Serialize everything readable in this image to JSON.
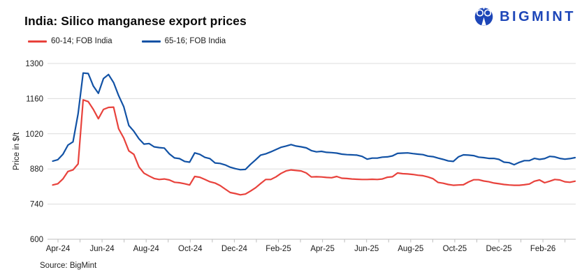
{
  "header": {
    "title": "India: Silico manganese export prices"
  },
  "logo": {
    "text": "BIGMINT",
    "color": "#1d46b8",
    "icon": "bigmint-people-icon"
  },
  "legend": {
    "items": [
      {
        "label": "60-14; FOB India",
        "color": "#e8423c"
      },
      {
        "label": "65-16; FOB India",
        "color": "#1252a5"
      }
    ]
  },
  "source": {
    "text": "Source: BigMint"
  },
  "chart_data": {
    "type": "line",
    "title": "India: Silico manganese export prices",
    "xlabel": "",
    "ylabel": "Price in $/t",
    "ylim": [
      600,
      1300
    ],
    "yticks": [
      600,
      740,
      880,
      1020,
      1160,
      1300
    ],
    "grid": "horizontal",
    "legend_position": "top-left",
    "x_range": [
      "late Mar-24",
      "mid Mar-26"
    ],
    "x_tick_months": 24,
    "xticklabels": [
      "Apr-24",
      "Jun-24",
      "Aug-24",
      "Oct-24",
      "Dec-24",
      "Feb-25",
      "Apr-25",
      "Jun-25",
      "Aug-25",
      "Oct-25",
      "Dec-25",
      "Feb-26"
    ],
    "x_resolution": "weekly",
    "series": [
      {
        "name": "60-14; FOB India",
        "color": "#e8423c",
        "values": [
          816,
          821,
          840,
          870,
          876,
          900,
          1155,
          1148,
          1117,
          1080,
          1117,
          1125,
          1126,
          1040,
          1003,
          952,
          938,
          888,
          863,
          852,
          842,
          838,
          840,
          836,
          827,
          825,
          821,
          816,
          850,
          847,
          838,
          829,
          824,
          814,
          800,
          786,
          782,
          777,
          780,
          792,
          805,
          822,
          838,
          838,
          848,
          862,
          872,
          876,
          874,
          872,
          864,
          848,
          849,
          848,
          846,
          845,
          850,
          843,
          842,
          840,
          839,
          838,
          838,
          839,
          838,
          840,
          847,
          849,
          864,
          861,
          860,
          858,
          855,
          853,
          848,
          841,
          826,
          823,
          818,
          815,
          816,
          817,
          828,
          837,
          837,
          832,
          829,
          824,
          821,
          818,
          816,
          815,
          815,
          817,
          820,
          831,
          836,
          825,
          831,
          838,
          836,
          829,
          827,
          831
        ]
      },
      {
        "name": "65-16; FOB India",
        "color": "#1252a5",
        "values": [
          911,
          917,
          938,
          975,
          988,
          1100,
          1262,
          1260,
          1210,
          1181,
          1240,
          1256,
          1224,
          1172,
          1128,
          1053,
          1030,
          1000,
          979,
          981,
          968,
          965,
          963,
          940,
          924,
          921,
          910,
          907,
          944,
          938,
          926,
          921,
          904,
          902,
          896,
          887,
          881,
          877,
          878,
          898,
          916,
          935,
          940,
          948,
          957,
          966,
          971,
          977,
          971,
          968,
          964,
          953,
          948,
          950,
          946,
          945,
          943,
          939,
          937,
          936,
          935,
          930,
          919,
          923,
          923,
          927,
          928,
          932,
          942,
          943,
          944,
          941,
          939,
          937,
          931,
          929,
          923,
          918,
          912,
          910,
          928,
          936,
          935,
          933,
          927,
          925,
          922,
          922,
          918,
          907,
          905,
          897,
          906,
          913,
          913,
          922,
          918,
          921,
          930,
          928,
          922,
          919,
          921,
          925
        ]
      }
    ]
  }
}
